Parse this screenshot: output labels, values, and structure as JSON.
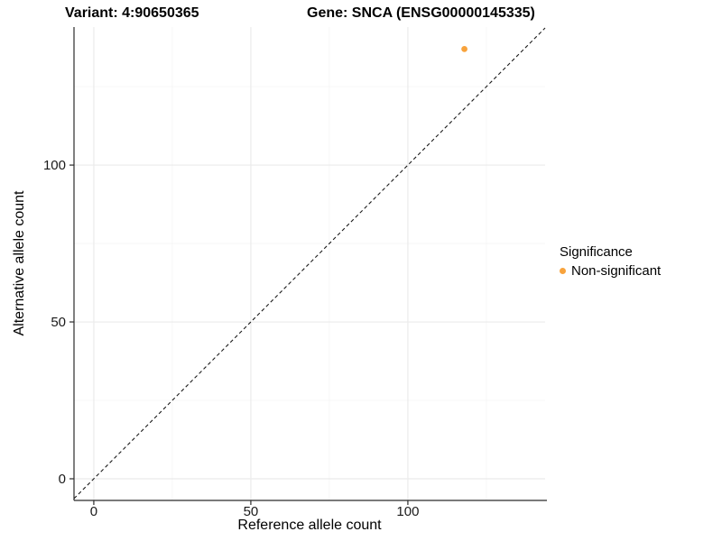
{
  "header": {
    "variant_title": "Variant: 4:90650365",
    "gene_title": "Gene: SNCA (ENSG00000145335)"
  },
  "chart_data": {
    "type": "scatter",
    "title_left": "Variant: 4:90650365",
    "title_right": "Gene: SNCA (ENSG00000145335)",
    "xlabel": "Reference allele count",
    "ylabel": "Alternative allele count",
    "xlim": [
      -6.3,
      143.7
    ],
    "ylim": [
      -6.9,
      144
    ],
    "x_ticks": [
      0,
      50,
      100
    ],
    "y_ticks": [
      0,
      50,
      100
    ],
    "x_minor_ticks": [
      25,
      75,
      125
    ],
    "y_minor_ticks": [
      25,
      75,
      125
    ],
    "grid": "on",
    "reference_line": {
      "type": "identity",
      "slope": 1,
      "intercept": 0,
      "style": "dashed",
      "color": "#1a1a1a"
    },
    "series": [
      {
        "name": "Non-significant",
        "color": "#F8A33C",
        "points": [
          {
            "x": 118,
            "y": 137
          }
        ]
      }
    ],
    "legend": {
      "title": "Significance",
      "position": "right",
      "items": [
        {
          "label": "Non-significant",
          "color": "#F8A33C"
        }
      ]
    },
    "colors": {
      "grid_major": "#EBEBEB",
      "grid_minor": "#F4F4F4",
      "axis_line": "#2b2b2b",
      "tick_text": "#1a1a1a",
      "background": "#FFFFFF"
    }
  }
}
